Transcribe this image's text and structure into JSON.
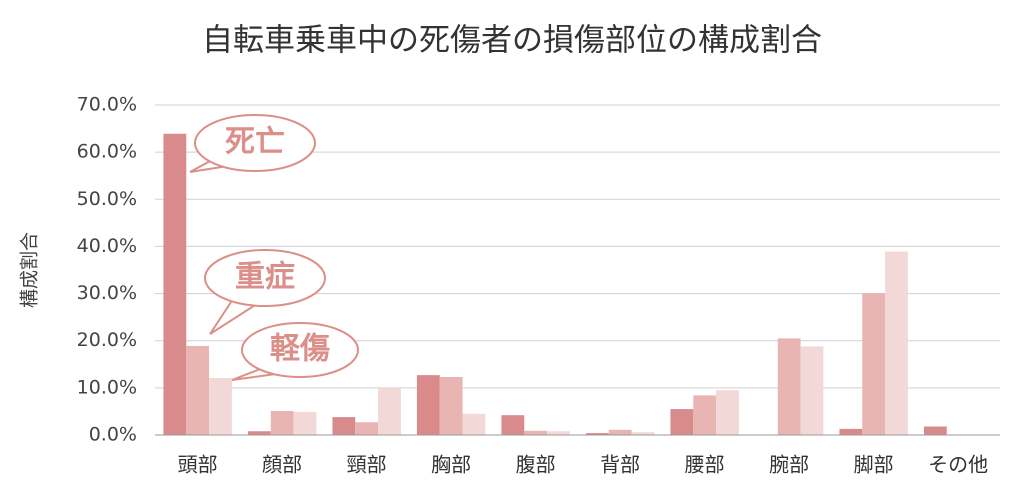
{
  "chart_data": {
    "type": "bar",
    "title": "自転車乗車中の死傷者の損傷部位の構成割合",
    "y_label": "構成割合",
    "categories": [
      "頭部",
      "顔部",
      "頸部",
      "胸部",
      "腹部",
      "背部",
      "腰部",
      "腕部",
      "脚部",
      "その他"
    ],
    "series": [
      {
        "name": "死亡",
        "color": "#d98a8a",
        "values": [
          63.9,
          0.8,
          3.8,
          12.7,
          4.2,
          0.4,
          5.5,
          0,
          1.3,
          1.8
        ]
      },
      {
        "name": "重症",
        "color": "#e8b5b2",
        "values": [
          18.9,
          5.1,
          2.7,
          12.3,
          0.9,
          1.1,
          8.4,
          20.5,
          30.1,
          0
        ]
      },
      {
        "name": "軽傷",
        "color": "#f2d9d8",
        "values": [
          12.1,
          4.9,
          10.0,
          4.5,
          0.8,
          0.6,
          9.5,
          18.8,
          38.9,
          0
        ]
      }
    ],
    "ylim": [
      0,
      70
    ],
    "yticks": [
      {
        "value": 0,
        "label": "0.0%"
      },
      {
        "value": 10,
        "label": "10.0%"
      },
      {
        "value": 20,
        "label": "20.0%"
      },
      {
        "value": 30,
        "label": "30.0%"
      },
      {
        "value": 40,
        "label": "40.0%"
      },
      {
        "value": 50,
        "label": "50.0%"
      },
      {
        "value": 60,
        "label": "60.0%"
      },
      {
        "value": 70,
        "label": "70.0%"
      }
    ],
    "grid": true
  }
}
